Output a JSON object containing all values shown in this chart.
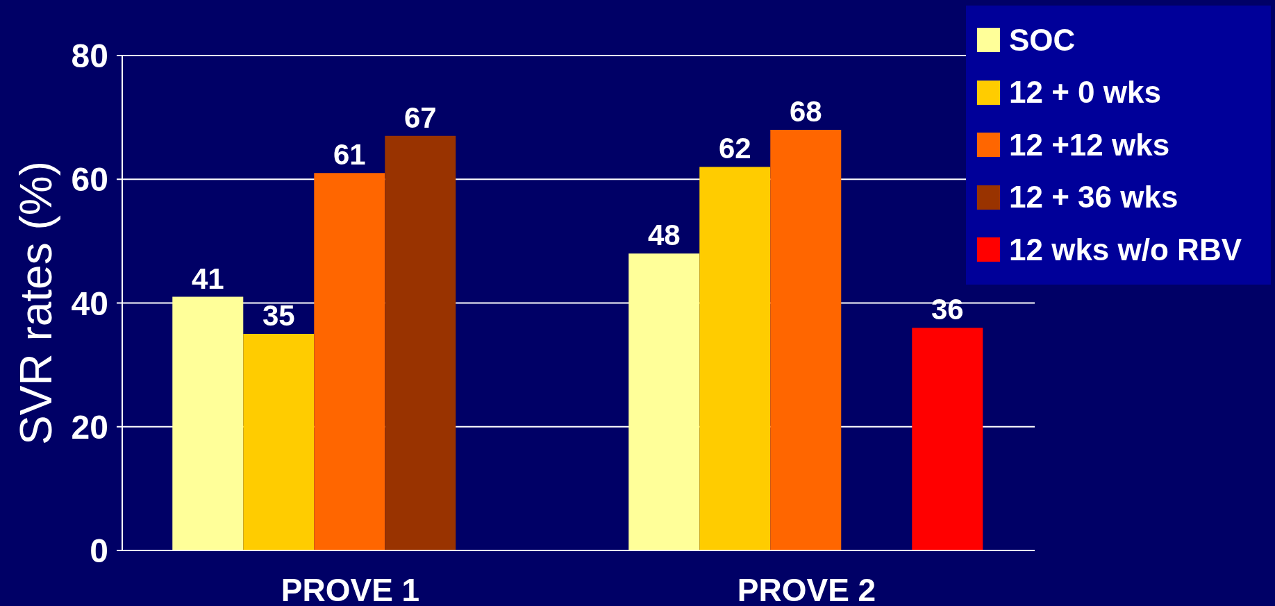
{
  "chart_data": {
    "type": "bar",
    "categories": [
      "PROVE 1",
      "PROVE 2"
    ],
    "series": [
      {
        "name": "SOC",
        "color": "#ffff99",
        "values": [
          41,
          48
        ]
      },
      {
        "name": "12 + 0 wks",
        "color": "#ffcc00",
        "values": [
          35,
          62
        ]
      },
      {
        "name": "12 +12 wks",
        "color": "#ff6600",
        "values": [
          61,
          68
        ]
      },
      {
        "name": "12 + 36 wks",
        "color": "#993300",
        "values": [
          67,
          null
        ]
      },
      {
        "name": "12 wks w/o RBV",
        "color": "#ff0000",
        "values": [
          null,
          36
        ]
      }
    ],
    "ylabel": "SVR rates (%)",
    "ylim": [
      0,
      80
    ],
    "yticks": [
      0,
      20,
      40,
      60,
      80
    ],
    "grid": "y",
    "legend": "top right",
    "data_labels": true
  }
}
